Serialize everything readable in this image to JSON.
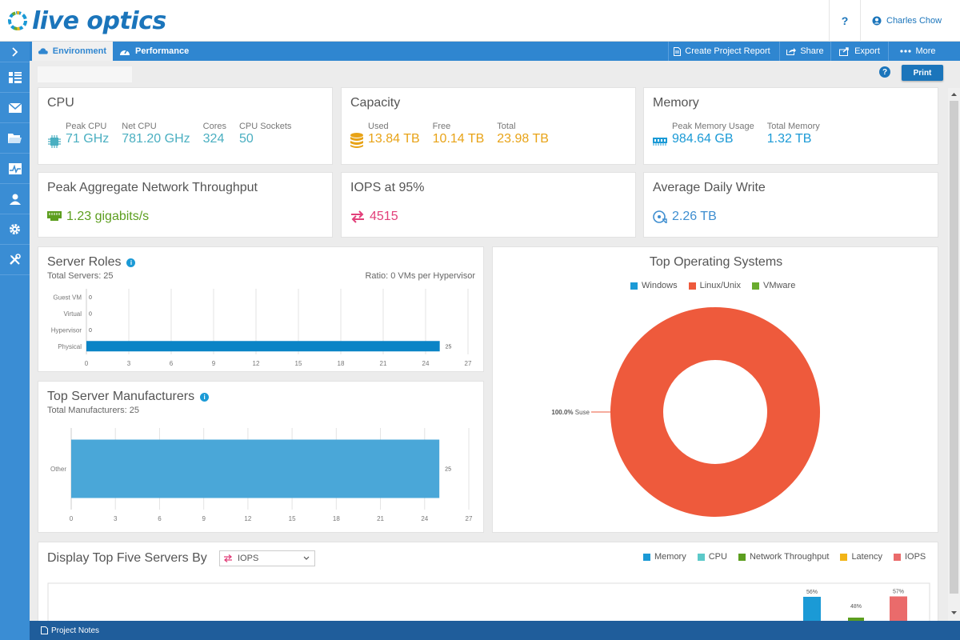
{
  "header": {
    "logo_text": "live optics",
    "help_label": "?",
    "user_name": "Charles Chow"
  },
  "tabs": [
    {
      "label": "Environment",
      "icon": "cloud-icon",
      "active": true
    },
    {
      "label": "Performance",
      "icon": "gauge-icon",
      "active": false
    }
  ],
  "toolbar": {
    "create_report": "Create Project Report",
    "share": "Share",
    "export": "Export",
    "more": "More",
    "print": "Print"
  },
  "sidebar": {
    "items": [
      "chevron-right-icon",
      "dashboard-icon",
      "mail-icon",
      "folder-icon",
      "activity-icon",
      "user-icon",
      "gear-icon",
      "tools-icon"
    ]
  },
  "cards": {
    "cpu": {
      "title": "CPU",
      "peak_cpu_label": "Peak CPU",
      "peak_cpu_value": "71 GHz",
      "net_cpu_label": "Net CPU",
      "net_cpu_value": "781.20 GHz",
      "cores_label": "Cores",
      "cores_value": "324",
      "sockets_label": "CPU Sockets",
      "sockets_value": "50",
      "color": "#4aafc1"
    },
    "capacity": {
      "title": "Capacity",
      "used_label": "Used",
      "used_value": "13.84 TB",
      "free_label": "Free",
      "free_value": "10.14 TB",
      "total_label": "Total",
      "total_value": "23.98 TB",
      "color": "#e8a317"
    },
    "memory": {
      "title": "Memory",
      "peak_label": "Peak Memory Usage",
      "peak_value": "984.64 GB",
      "total_label": "Total Memory",
      "total_value": "1.32 TB",
      "color": "#1b9ad6"
    },
    "network": {
      "title": "Peak Aggregate Network Throughput",
      "value": "1.23 gigabits/s",
      "color": "#5c9e1f"
    },
    "iops": {
      "title": "IOPS at 95%",
      "value": "4515",
      "color": "#e2407a"
    },
    "daily_write": {
      "title": "Average Daily Write",
      "value": "2.26 TB",
      "color": "#3e8ed0"
    }
  },
  "server_roles": {
    "title": "Server Roles",
    "total_servers": "Total Servers: 25",
    "ratio": "Ratio: 0 VMs per Hypervisor"
  },
  "manufacturers": {
    "title": "Top Server Manufacturers",
    "total": "Total Manufacturers: 25"
  },
  "top_os": {
    "title": "Top Operating Systems",
    "legend": [
      {
        "label": "Windows",
        "color": "#1b9ad6"
      },
      {
        "label": "Linux/Unix",
        "color": "#ee5a3c"
      },
      {
        "label": "VMware",
        "color": "#6aab2e"
      }
    ],
    "slice_pct": "100.0%",
    "slice_name": "Suse"
  },
  "top_five": {
    "title": "Display Top Five Servers By",
    "select_value": "IOPS",
    "legend": [
      {
        "label": "Memory",
        "color": "#1b9ad6"
      },
      {
        "label": "CPU",
        "color": "#5cc9c9"
      },
      {
        "label": "Network Throughput",
        "color": "#5c9e1f"
      },
      {
        "label": "Latency",
        "color": "#f2b417"
      },
      {
        "label": "IOPS",
        "color": "#ea6b6b"
      }
    ]
  },
  "footer": {
    "project_notes": "Project Notes"
  },
  "chart_data": [
    {
      "type": "bar",
      "orientation": "horizontal",
      "title": "Server Roles",
      "categories": [
        "Guest VM",
        "Virtual",
        "Hypervisor",
        "Physical"
      ],
      "values": [
        0,
        0,
        0,
        25
      ],
      "xlim": [
        0,
        27
      ],
      "xticks": [
        0,
        3,
        6,
        9,
        12,
        15,
        18,
        21,
        24,
        27
      ],
      "color": "#0b84c6"
    },
    {
      "type": "bar",
      "orientation": "horizontal",
      "title": "Top Server Manufacturers",
      "categories": [
        "Other"
      ],
      "values": [
        25
      ],
      "xlim": [
        0,
        27
      ],
      "xticks": [
        0,
        3,
        6,
        9,
        12,
        15,
        18,
        21,
        24,
        27
      ],
      "color": "#4aa7d8"
    },
    {
      "type": "pie",
      "title": "Top Operating Systems",
      "labels": [
        "Suse"
      ],
      "values": [
        100.0
      ],
      "color": "#ee5a3c",
      "donut": true
    },
    {
      "type": "bar",
      "title": "Display Top Five Servers By",
      "series": [
        {
          "name": "Memory",
          "value": 56,
          "label": "56%",
          "color": "#1b9ad6"
        },
        {
          "name": "Network Throughput",
          "value": 48,
          "label": "48%",
          "color": "#5c9e1f"
        },
        {
          "name": "IOPS",
          "value": 57,
          "label": "57%",
          "color": "#ea6b6b"
        }
      ]
    }
  ]
}
